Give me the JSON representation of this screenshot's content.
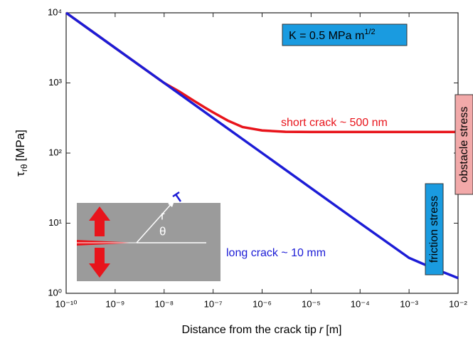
{
  "chart_data": {
    "type": "line",
    "ylabel": {
      "symbol": "τ",
      "subscript": "rθ",
      "unit": "[MPa]"
    },
    "xlabel": {
      "text": "Distance from the crack tip",
      "variable": "r",
      "unit": "[m]"
    },
    "xscale": "log",
    "yscale": "log",
    "xlim": [
      1e-10,
      0.01
    ],
    "ylim": [
      1,
      10000
    ],
    "xticks": [
      {
        "value": 1e-10,
        "label": "10⁻¹⁰"
      },
      {
        "value": 1e-09,
        "label": "10⁻⁹"
      },
      {
        "value": 1e-08,
        "label": "10⁻⁸"
      },
      {
        "value": 1e-07,
        "label": "10⁻⁷"
      },
      {
        "value": 1e-06,
        "label": "10⁻⁶"
      },
      {
        "value": 1e-05,
        "label": "10⁻⁵"
      },
      {
        "value": 0.0001,
        "label": "10⁻⁴"
      },
      {
        "value": 0.001,
        "label": "10⁻³"
      },
      {
        "value": 0.01,
        "label": "10⁻²"
      }
    ],
    "yticks": [
      {
        "value": 1,
        "label": "10⁰"
      },
      {
        "value": 10,
        "label": "10¹"
      },
      {
        "value": 100,
        "label": "10²"
      },
      {
        "value": 1000,
        "label": "10³"
      },
      {
        "value": 10000,
        "label": "10⁴"
      }
    ],
    "series": [
      {
        "name": "short crack ~ 500 nm",
        "color": "#e8141b",
        "x": [
          1e-10,
          1e-09,
          1e-08,
          2e-08,
          4e-08,
          7e-08,
          1e-07,
          2e-07,
          4e-07,
          1e-06,
          3e-06,
          1e-05,
          0.0001,
          0.001,
          0.01
        ],
        "values": [
          10000,
          3160,
          1000,
          760,
          560,
          440,
          380,
          290,
          235,
          210,
          201,
          200,
          200,
          200,
          200
        ]
      },
      {
        "name": "long crack ~ 10 mm",
        "color": "#1c1cd6",
        "x": [
          1e-10,
          1e-09,
          1e-08,
          1e-07,
          1e-06,
          1e-05,
          0.0001,
          0.001,
          0.003,
          0.01
        ],
        "values": [
          10000,
          3160,
          1000,
          316,
          100,
          31.6,
          10,
          3.2,
          2.3,
          1.65
        ]
      }
    ],
    "annotations": {
      "k_box": {
        "text": "K = 0.5 MPa m",
        "superscript": "1/2"
      },
      "obstacle": "obstacle stress",
      "friction": "friction stress",
      "inset_r": "r",
      "inset_theta": "θ"
    }
  }
}
